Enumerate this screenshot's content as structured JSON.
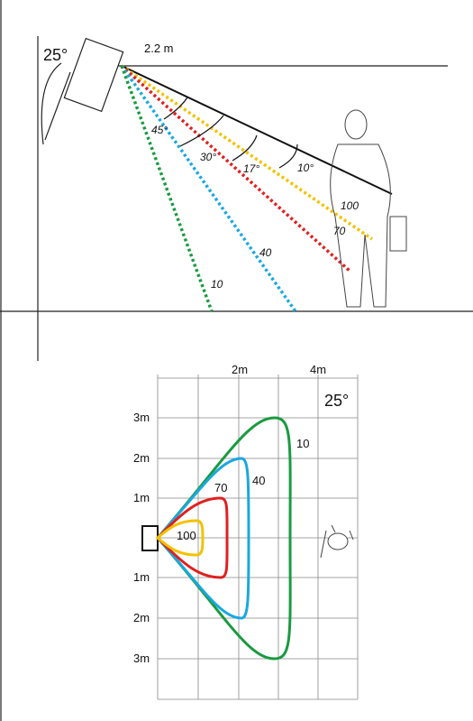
{
  "side_view": {
    "angle": "25°",
    "height": "2.2 m",
    "angles": [
      "45°",
      "30°",
      "17°",
      "10°"
    ],
    "zones": [
      "100",
      "70",
      "40",
      "10"
    ]
  },
  "top_view": {
    "angle": "25°",
    "x_labels": [
      "2m",
      "4m"
    ],
    "y_labels": [
      "3m",
      "2m",
      "1m",
      "1m",
      "2m",
      "3m"
    ],
    "zones": [
      "10",
      "40",
      "70",
      "100"
    ]
  }
}
